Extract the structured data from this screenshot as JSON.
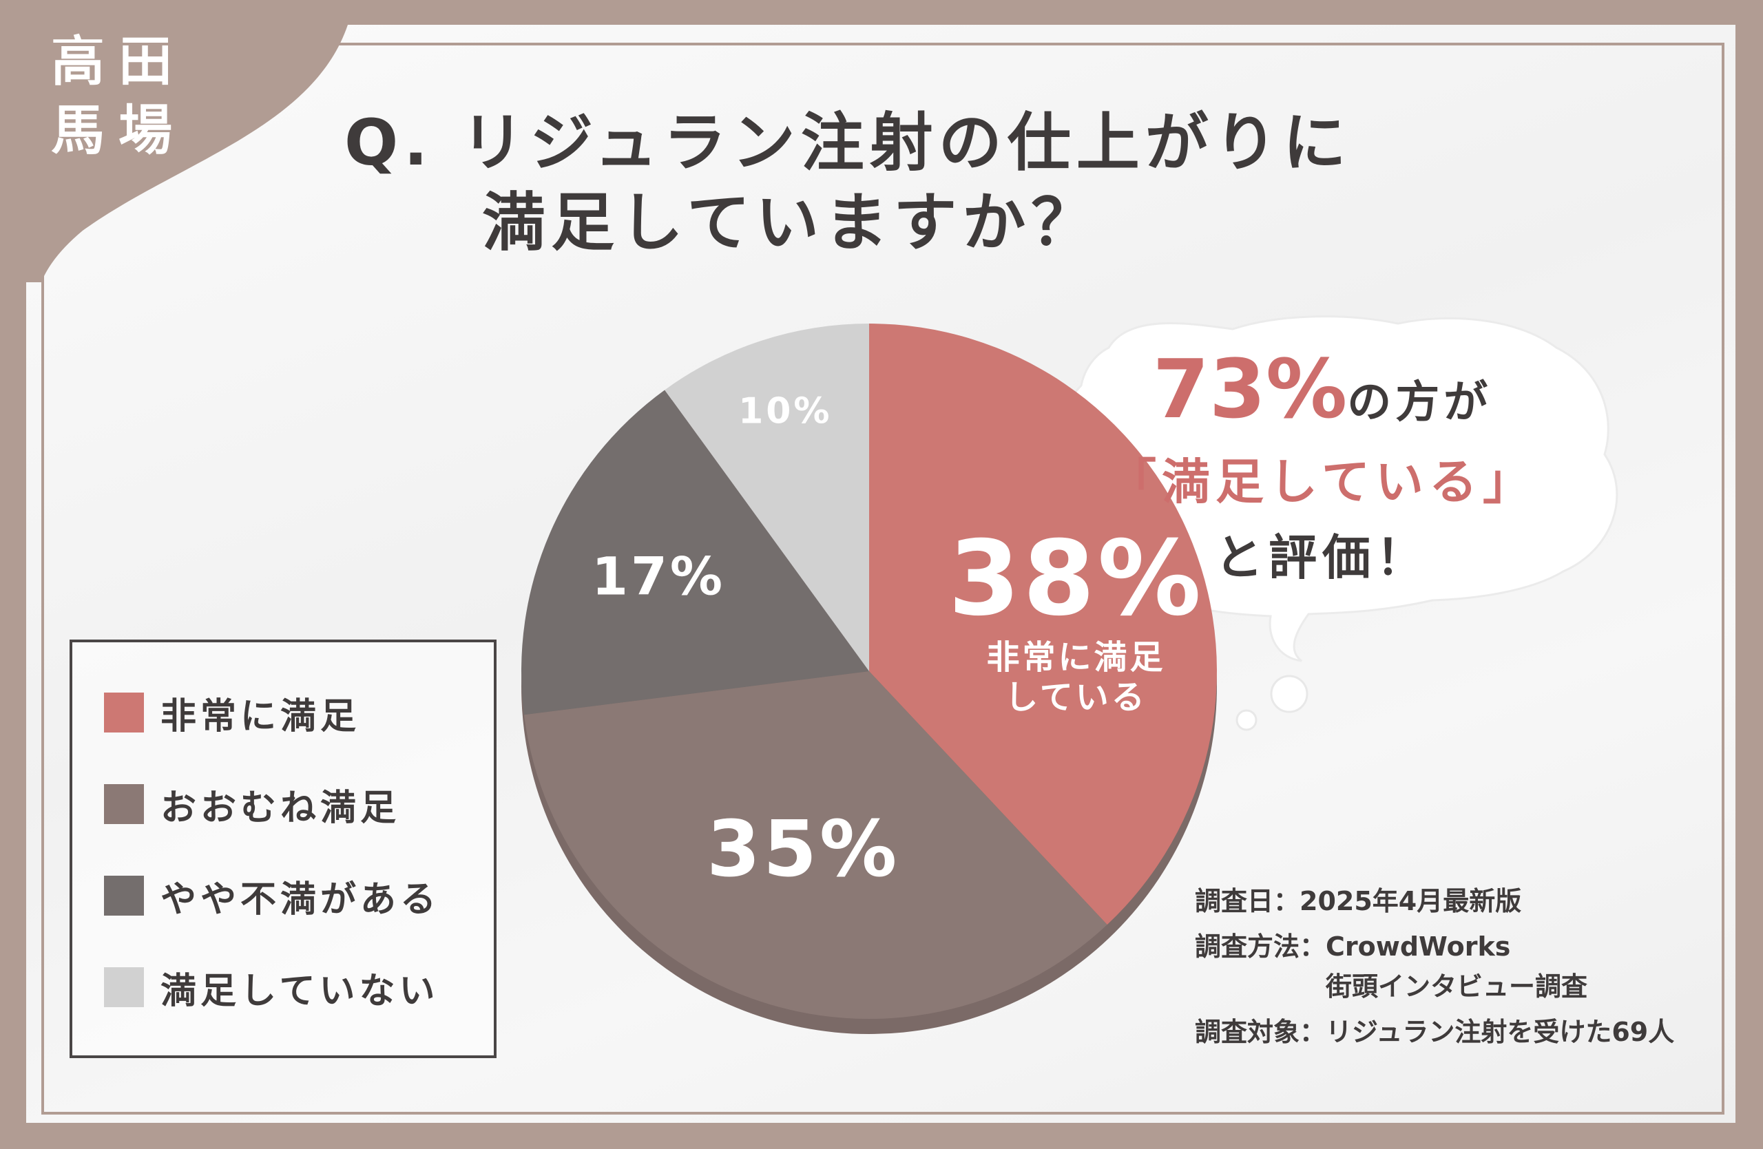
{
  "logo": {
    "chars": [
      "高",
      "田",
      "馬",
      "場"
    ]
  },
  "question": {
    "line1": "Q. リジュラン注射の仕上がりに",
    "line2": "満足していますか？"
  },
  "colors": {
    "frame": "#b19c93",
    "very_satisfied": "#cd7873",
    "mostly_satisfied": "#8b7975",
    "somewhat_dissatisfied": "#746e6d",
    "not_satisfied": "#d1d1d1",
    "accent_text": "#cd6e6c",
    "body_text": "#3f3b3b"
  },
  "chart_data": {
    "type": "pie",
    "title": "Q. リジュラン注射の仕上がりに満足していますか？",
    "categories": [
      "非常に満足",
      "おおむね満足",
      "やや不満がある",
      "満足していない"
    ],
    "values": [
      38,
      35,
      17,
      10
    ],
    "unit": "%",
    "slice_labels": [
      "38%",
      "35%",
      "17%",
      "10%"
    ],
    "callout": {
      "slice": 0,
      "text_lines": [
        "非常に満足",
        "している"
      ]
    },
    "legend_position": "bottom-left"
  },
  "legend": {
    "items": [
      {
        "label": "非常に満足",
        "color_key": "very_satisfied"
      },
      {
        "label": "おおむね満足",
        "color_key": "mostly_satisfied"
      },
      {
        "label": "やや不満がある",
        "color_key": "somewhat_dissatisfied"
      },
      {
        "label": "満足していない",
        "color_key": "not_satisfied"
      }
    ]
  },
  "bubble": {
    "percent": "73%",
    "line1_rest": "の方が",
    "line2": "「満足している」",
    "line3": "と評価！"
  },
  "survey": {
    "date_key": "調査日：",
    "date_val": "2025年4月最新版",
    "method_key": "調査方法：",
    "method_val1": "CrowdWorks",
    "method_val2": "街頭インタビュー調査",
    "target_key": "調査対象：",
    "target_val": "リジュラン注射を受けた69人"
  }
}
